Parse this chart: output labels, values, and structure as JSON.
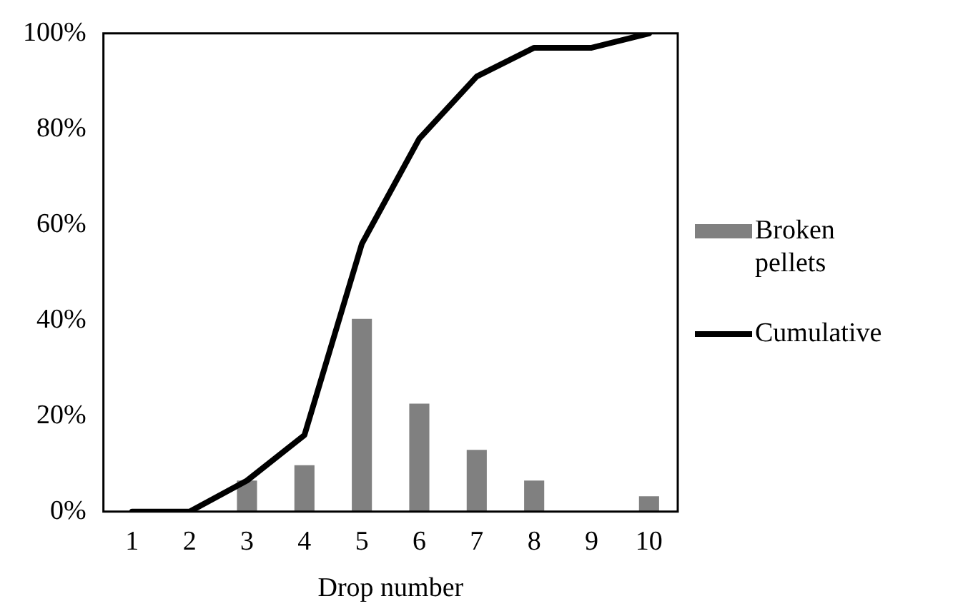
{
  "chart_data": {
    "type": "bar",
    "xlabel": "Drop number",
    "categories": [
      "1",
      "2",
      "3",
      "4",
      "5",
      "6",
      "7",
      "8",
      "9",
      "10"
    ],
    "series": [
      {
        "name": "Broken pellets",
        "color": "#808080",
        "values": [
          0,
          0,
          6.5,
          9.7,
          40.3,
          22.6,
          12.9,
          6.5,
          0,
          3.2
        ]
      },
      {
        "name": "Cumulative",
        "type": "line",
        "color": "#000000",
        "values": [
          0,
          0,
          6.5,
          16,
          56,
          78,
          91,
          97,
          97,
          100
        ]
      }
    ],
    "ylim": [
      0,
      100
    ],
    "yticks": [
      {
        "value": 0,
        "label": "0%"
      },
      {
        "value": 20,
        "label": "20%"
      },
      {
        "value": 40,
        "label": "40%"
      },
      {
        "value": 60,
        "label": "60%"
      },
      {
        "value": 80,
        "label": "80%"
      },
      {
        "value": 100,
        "label": "100%"
      }
    ],
    "grid": false,
    "legend": "right",
    "marker": "none"
  }
}
